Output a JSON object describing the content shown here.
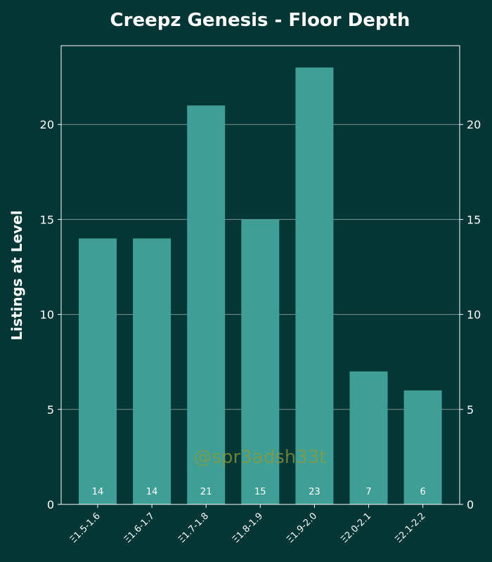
{
  "chart_data": {
    "type": "bar",
    "title": "Creepz Genesis - Floor Depth",
    "xlabel": "",
    "ylabel": "Listings at Level",
    "categories": [
      "Ξ1.5-1.6",
      "Ξ1.6-1.7",
      "Ξ1.7-1.8",
      "Ξ1.8-1.9",
      "Ξ1.9-2.0",
      "Ξ2.0-2.1",
      "Ξ2.1-2.2"
    ],
    "values": [
      14,
      14,
      21,
      15,
      23,
      7,
      6
    ],
    "data_labels": [
      "14",
      "14",
      "21",
      "15",
      "23",
      "7",
      "6"
    ],
    "ylim": [
      0,
      24.15
    ],
    "yticks": [
      0,
      5,
      10,
      15,
      20
    ],
    "ytick_labels": [
      "0",
      "5",
      "10",
      "15",
      "20"
    ],
    "grid": true,
    "right_axis_mirrored": true,
    "watermark": "@spr3adsh33t",
    "colors": {
      "background": "#053636",
      "bar": "#3f9e96",
      "grid": "#7f9191",
      "axis": "#ffffff",
      "text": "#ffffff",
      "watermark": "#8a9a3a"
    }
  }
}
